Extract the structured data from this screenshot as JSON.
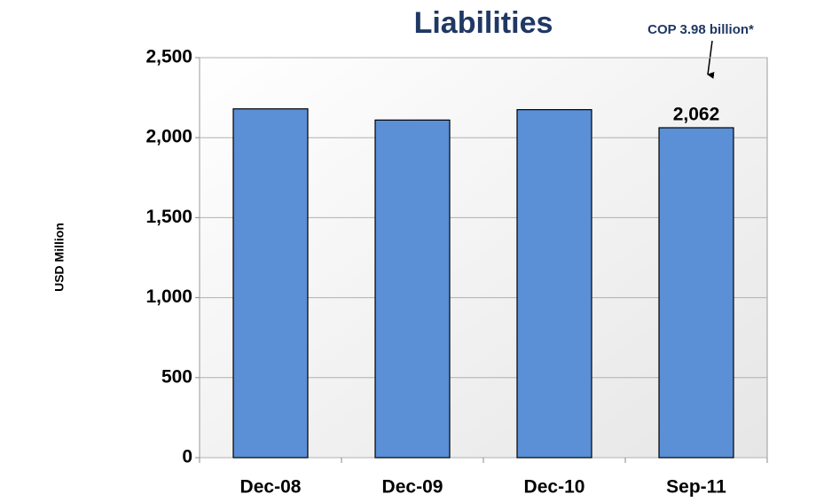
{
  "chart_data": {
    "type": "bar",
    "title": "Liabilities",
    "annotation": "COP 3.98 billion*",
    "y_label": "USD Million",
    "categories": [
      "Dec-08",
      "Dec-09",
      "Dec-10",
      "Sep-11"
    ],
    "values": [
      2180,
      2110,
      2175,
      2062
    ],
    "value_labels": [
      null,
      null,
      null,
      "2,062"
    ],
    "color": "#5b8fd6",
    "ylim": [
      0,
      2500
    ],
    "yticks": [
      0,
      500,
      {
        "value": 1000,
        "label": "1,000"
      },
      {
        "value": 1500,
        "label": "1,500"
      },
      {
        "value": 2000,
        "label": "2,000"
      },
      {
        "value": 2500,
        "label": "2,500"
      }
    ],
    "grid": true
  }
}
